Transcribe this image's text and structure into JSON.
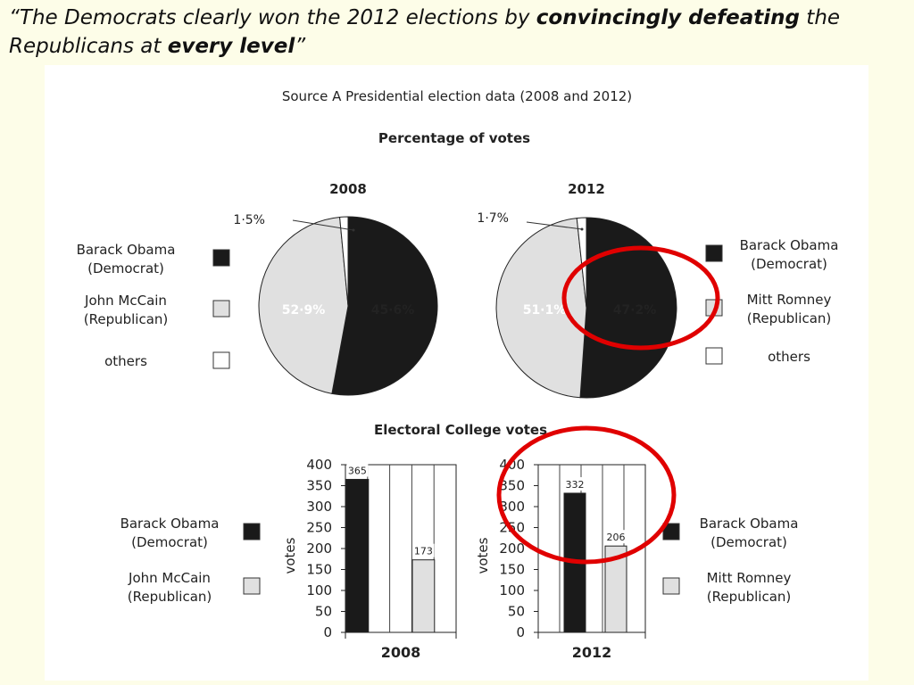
{
  "quote": {
    "part1": "“The Democrats clearly won the 2012 elections by ",
    "emph1": "convincingly defeating",
    "part2": " the Republicans at ",
    "emph2": "every level",
    "part3": "”"
  },
  "source_title": "Source A Presidential election data (2008 and 2012)",
  "pie_section_title": "Percentage of votes",
  "bar_section_title": "Electoral College votes",
  "legend_2008": [
    {
      "label1": "Barack Obama",
      "label2": "(Democrat)",
      "color": "#1a1a1a"
    },
    {
      "label1": "John McCain",
      "label2": "(Republican)",
      "color": "#e0e0e0"
    },
    {
      "label1": "others",
      "label2": "",
      "color": "#ffffff"
    }
  ],
  "legend_2012": [
    {
      "label1": "Barack Obama",
      "label2": "(Democrat)",
      "color": "#1a1a1a"
    },
    {
      "label1": "Mitt Romney",
      "label2": "(Republican)",
      "color": "#e0e0e0"
    },
    {
      "label1": "others",
      "label2": "",
      "color": "#ffffff"
    }
  ],
  "chart_data": [
    {
      "type": "pie",
      "title": "2008",
      "slices": [
        {
          "name": "Barack Obama (Democrat)",
          "value": 52.9,
          "label": "52·9%",
          "color": "#1a1a1a"
        },
        {
          "name": "John McCain (Republican)",
          "value": 45.6,
          "label": "45·6%",
          "color": "#e0e0e0"
        },
        {
          "name": "others",
          "value": 1.5,
          "label": "1·5%",
          "color": "#ffffff"
        }
      ]
    },
    {
      "type": "pie",
      "title": "2012",
      "slices": [
        {
          "name": "Barack Obama (Democrat)",
          "value": 51.1,
          "label": "51·1%",
          "color": "#1a1a1a"
        },
        {
          "name": "Mitt Romney (Republican)",
          "value": 47.2,
          "label": "47·2%",
          "color": "#e0e0e0"
        },
        {
          "name": "others",
          "value": 1.7,
          "label": "1·7%",
          "color": "#ffffff"
        }
      ]
    },
    {
      "type": "bar",
      "xlabel": "2008",
      "ylabel": "votes",
      "ylim": [
        0,
        400
      ],
      "yticks": [
        0,
        50,
        100,
        150,
        200,
        250,
        300,
        350,
        400
      ],
      "categories": [
        "Barack Obama (Democrat)",
        "John McCain (Republican)"
      ],
      "values": [
        365,
        173
      ],
      "colors": [
        "#1a1a1a",
        "#e0e0e0"
      ]
    },
    {
      "type": "bar",
      "xlabel": "2012",
      "ylabel": "votes",
      "ylim": [
        0,
        400
      ],
      "yticks": [
        0,
        50,
        100,
        150,
        200,
        250,
        300,
        350,
        400
      ],
      "categories": [
        "Barack Obama (Democrat)",
        "Mitt Romney (Republican)"
      ],
      "values": [
        332,
        206
      ],
      "colors": [
        "#1a1a1a",
        "#e0e0e0"
      ]
    }
  ],
  "annotation_color": "#e00000"
}
